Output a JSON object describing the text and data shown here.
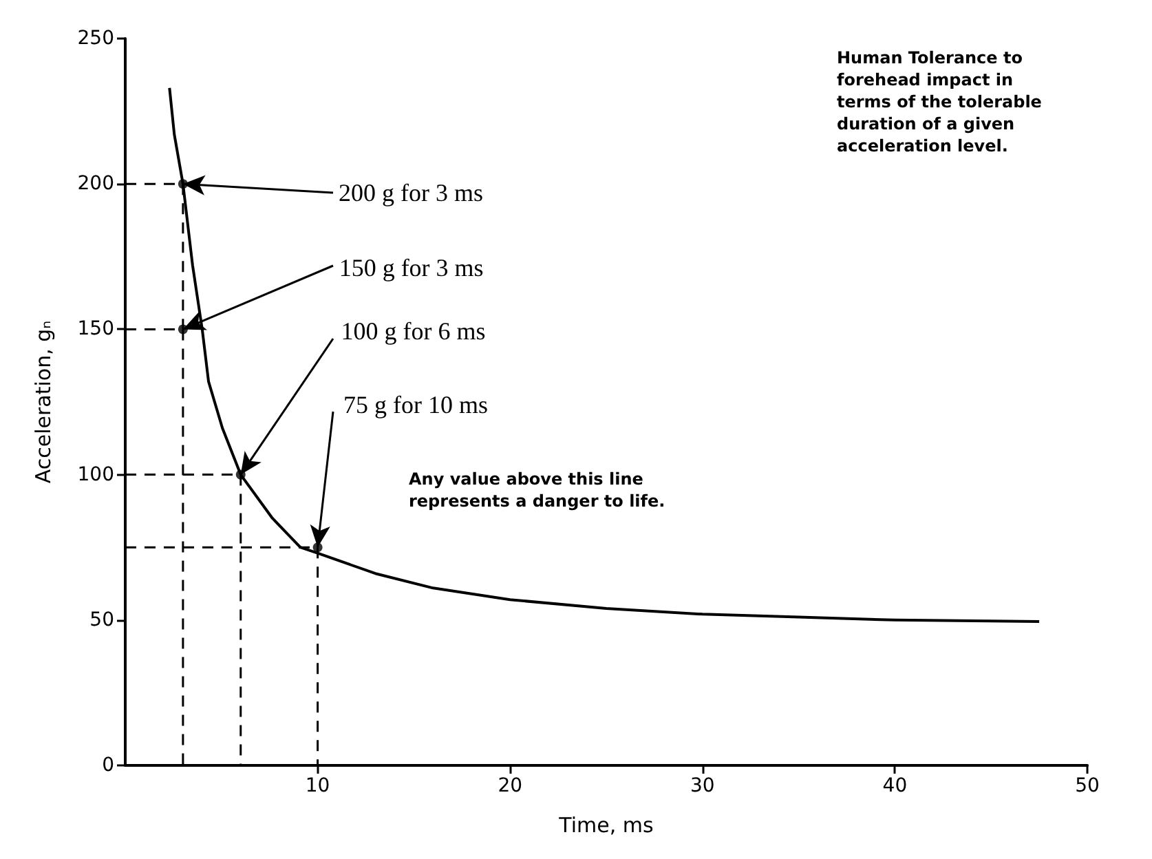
{
  "chart_data": {
    "type": "line",
    "xlabel": "Time, ms",
    "ylabel": "Acceleration, gₙ",
    "x": [
      2.3,
      2.55,
      3,
      3.5,
      4,
      4.33,
      5.05,
      6,
      7.65,
      9.1,
      10,
      13,
      16,
      20,
      25,
      30,
      35,
      40,
      47.5
    ],
    "series": [
      {
        "color": "#000000",
        "values": [
          233,
          217,
          200,
          172,
          150,
          132,
          116,
          100,
          85,
          75,
          73,
          66,
          61,
          57,
          54,
          52,
          51,
          50,
          49.5
        ]
      }
    ],
    "marker": "none",
    "line_style": "solid",
    "grid": false,
    "xlim": [
      0,
      50
    ],
    "xticks": [
      10,
      20,
      30,
      40,
      50
    ],
    "ylim": [
      0,
      250
    ],
    "yticks": [
      0,
      50,
      100,
      150,
      200,
      250
    ],
    "annotations": [
      {
        "text": "200 g for 3 ms",
        "x": 3,
        "y": 200
      },
      {
        "text": "150 g for 3 ms",
        "x": 3,
        "y": 150
      },
      {
        "text": "100 g for 6 ms",
        "x": 6,
        "y": 100
      },
      {
        "text": "75 g for 10 ms",
        "x": 10,
        "y": 75
      },
      "Human Tolerance to forehead impact in terms of the tolerable duration of a given acceleration level.",
      "Any value above this line represents a danger to life."
    ]
  }
}
